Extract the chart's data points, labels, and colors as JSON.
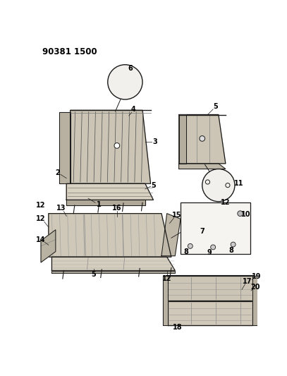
{
  "title": "90381 1500",
  "bg_color": "#ffffff",
  "lc": "#1a1a1a",
  "fig_width": 4.07,
  "fig_height": 5.33,
  "dpi": 100,
  "seat_fill": "#c8c0b0",
  "seat_fill2": "#b8b0a0",
  "seat_shadow": "#a09880",
  "cushion_fill": "#d0c8b8"
}
